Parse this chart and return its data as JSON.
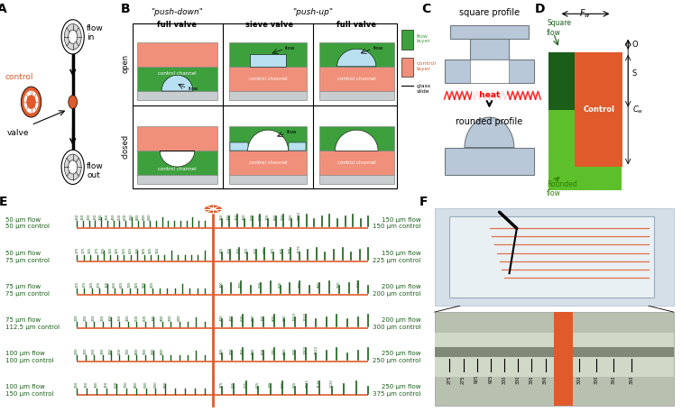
{
  "bg_color": "#ffffff",
  "panel_A_green": "#7bc94a",
  "orange_red": "#e05a2b",
  "salmon": "#f0907a",
  "flow_green": "#3da03d",
  "blue_light": "#b8e0f0",
  "gray_light": "#c8c8c8",
  "dark_green": "#1a5e1a",
  "bright_green": "#5dc02a",
  "left_labels": [
    "50 μm flow\n50 μm control",
    "50 μm flow\n75 μm control",
    "75 μm flow\n75 μm control",
    "75 μm flow\n112.5 μm control",
    "100 μm flow\n100 μm control",
    "100 μm flow\n150 μm control"
  ],
  "right_labels": [
    "150 μm flow\n150 μm control",
    "150 μm flow\n225 μm control",
    "200 μm flow\n200 μm control",
    "200 μm flow\n300 μm control",
    "250 μm flow\n250 μm control",
    "250 μm flow\n375 μm control"
  ],
  "left_tick_nums": [
    [
      "150",
      "150",
      "200",
      "250",
      "300",
      "350",
      "400",
      "500",
      "600",
      "700",
      "800",
      "900",
      "000"
    ],
    [
      "175",
      "175",
      "225",
      "275",
      "275",
      "325",
      "425",
      "525",
      "625",
      "725",
      "825",
      "925",
      "925"
    ],
    [
      "175",
      "175",
      "225",
      "275",
      "325",
      "525",
      "625",
      "725",
      "825",
      "925",
      "925"
    ],
    [
      "200",
      "200",
      "250",
      "250",
      "300",
      "350",
      "400",
      "500",
      "600",
      "700",
      "800",
      "900",
      "000"
    ],
    [
      "200",
      "200",
      "250",
      "300",
      "400",
      "600",
      "700",
      "800",
      "900",
      "000",
      "800"
    ],
    [
      "250",
      "250",
      "300",
      "350",
      "500",
      "700",
      "800",
      "900",
      "000",
      "800"
    ]
  ],
  "right_tick_nums": [
    [
      "250",
      "300",
      "350",
      "400",
      "500",
      "600",
      "700",
      "800",
      "900",
      "000",
      "1000"
    ],
    [
      "325",
      "375",
      "425",
      "475",
      "575",
      "675",
      "775",
      "875",
      "975",
      "1075"
    ],
    [
      "300",
      "400",
      "500",
      "600",
      "700",
      "800",
      "900",
      "1000"
    ],
    [
      "400",
      "450",
      "500",
      "600",
      "700",
      "800",
      "900",
      "1000",
      "1100"
    ],
    [
      "350",
      "400",
      "450",
      "500",
      "600",
      "700",
      "800",
      "900",
      "1000",
      "1100"
    ],
    [
      "475",
      "525",
      "575",
      "625",
      "725",
      "825",
      "925",
      "1025",
      "1125",
      "1225"
    ]
  ]
}
